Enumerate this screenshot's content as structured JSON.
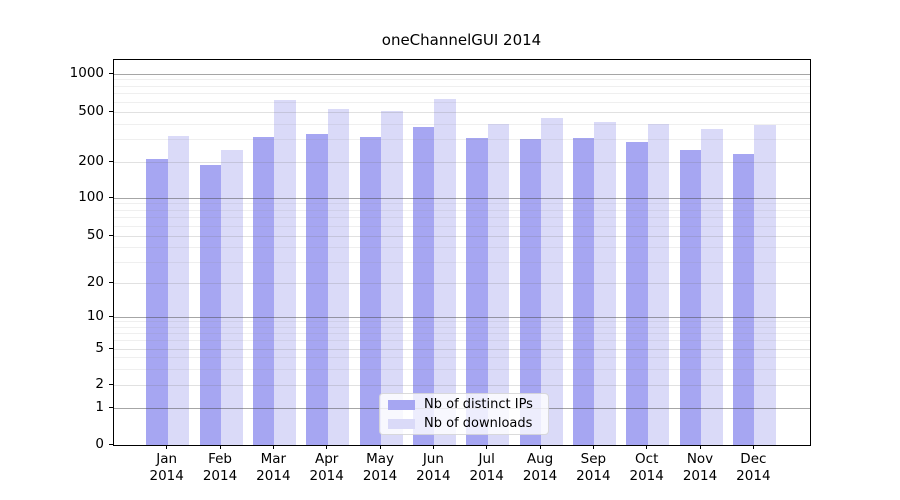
{
  "chart_data": {
    "type": "bar",
    "title": "oneChannelGUI 2014",
    "categories": [
      "Jan 2014",
      "Feb 2014",
      "Mar 2014",
      "Apr 2014",
      "May 2014",
      "Jun 2014",
      "Jul 2014",
      "Aug 2014",
      "Sep 2014",
      "Oct 2014",
      "Nov 2014",
      "Dec 2014"
    ],
    "series": [
      {
        "name": "Nb of distinct IPs",
        "color": "#a6a6f2",
        "values": [
          210,
          188,
          318,
          336,
          318,
          382,
          310,
          303,
          310,
          290,
          250,
          230
        ]
      },
      {
        "name": "Nb of downloads",
        "color": "#dadaf8",
        "values": [
          320,
          248,
          626,
          530,
          512,
          638,
          405,
          450,
          420,
          400,
          367,
          395
        ]
      }
    ],
    "y_ticks": [
      0,
      1,
      2,
      5,
      10,
      20,
      50,
      100,
      200,
      500,
      1000
    ],
    "y_minor_gridlines": [
      3,
      4,
      6,
      7,
      8,
      9,
      30,
      40,
      60,
      70,
      80,
      90,
      300,
      400,
      600,
      700,
      800,
      900
    ],
    "y_scale": "symlog",
    "ylim": [
      0,
      1300
    ],
    "xlabel": "",
    "ylabel": "",
    "grid": true,
    "legend_position": "inside-bottom-center"
  },
  "colors": {
    "bar_distinct_ips": "#a6a6f2",
    "bar_downloads": "#dadaf8",
    "grid_decade": "#aaaaaa",
    "grid_major": "#dedede",
    "grid_minor": "#ebebeb",
    "axis": "#000000",
    "legend_background": "rgba(255,255,255,0.8)",
    "background": "#ffffff"
  }
}
